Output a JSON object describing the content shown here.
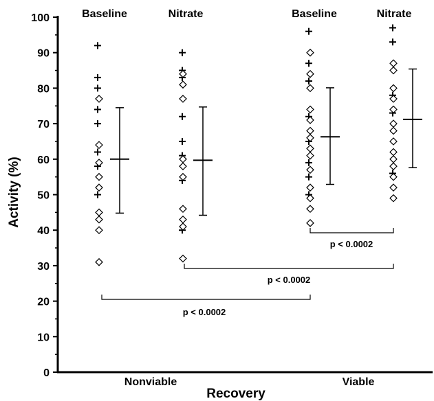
{
  "chart_data": {
    "type": "scatter",
    "title": "",
    "xlabel": "Recovery",
    "ylabel": "Activity (%)",
    "ylim": [
      0,
      100
    ],
    "yticks": [
      0,
      10,
      20,
      30,
      40,
      50,
      60,
      70,
      80,
      90,
      100
    ],
    "categories": [
      "Nonviable",
      "Viable"
    ],
    "legend": "none",
    "grid": false,
    "groups": [
      {
        "header": "Baseline",
        "category": "Nonviable",
        "plus_values": [
          92,
          83,
          80,
          74,
          70,
          62,
          58,
          50
        ],
        "diamond_values": [
          77,
          64,
          59,
          55,
          52,
          45,
          43,
          40,
          31
        ],
        "mean": 60,
        "sd_range": [
          44.8,
          74.5
        ]
      },
      {
        "header": "Nitrate",
        "category": "Nonviable",
        "plus_values": [
          90,
          85,
          83,
          72,
          65,
          61,
          54,
          40
        ],
        "diamond_values": [
          84,
          81,
          77,
          60,
          58,
          55,
          46,
          43,
          41,
          32
        ],
        "mean": 59.7,
        "sd_range": [
          44.2,
          74.7
        ]
      },
      {
        "header": "Baseline",
        "category": "Viable",
        "plus_values": [
          96,
          87,
          82,
          72,
          65,
          59,
          55,
          50
        ],
        "diamond_values": [
          90,
          84,
          80,
          74,
          71,
          68,
          66,
          63,
          61,
          57,
          52,
          49,
          46,
          42
        ],
        "mean": 66.3,
        "sd_range": [
          52.9,
          80.1
        ]
      },
      {
        "header": "Nitrate",
        "category": "Viable",
        "plus_values": [
          97,
          93,
          78,
          73,
          56
        ],
        "diamond_values": [
          87,
          85,
          80,
          77,
          74,
          70,
          68,
          65,
          62,
          60,
          58,
          55,
          52,
          49
        ],
        "mean": 71.2,
        "sd_range": [
          57.6,
          85.4
        ]
      }
    ],
    "comparisons": [
      {
        "label": "p < 0.0002",
        "from_group": 2,
        "to_group": 3
      },
      {
        "label": "p < 0.0002",
        "from_group": 1,
        "to_group": 3
      },
      {
        "label": "p < 0.0002",
        "from_group": 0,
        "to_group": 2
      }
    ]
  }
}
